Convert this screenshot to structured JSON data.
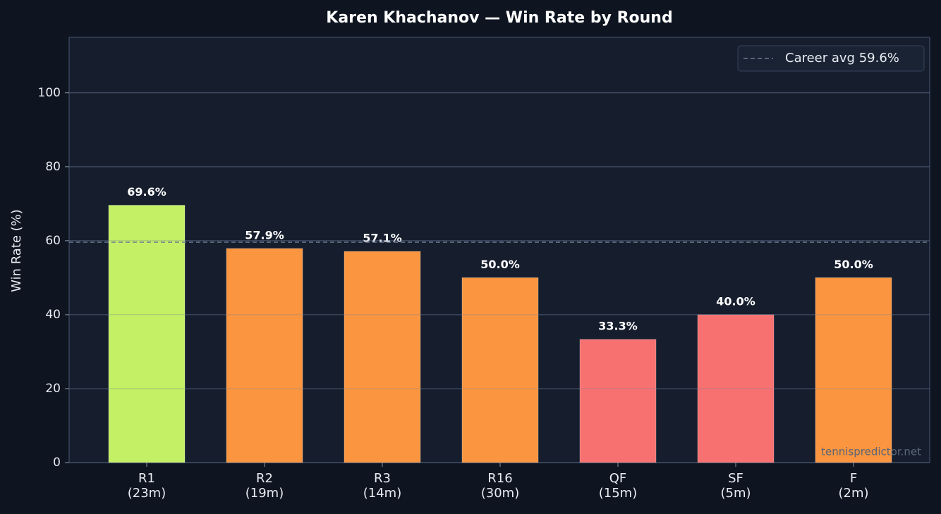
{
  "chart_data": {
    "type": "bar",
    "title": "Karen Khachanov — Win Rate by Round",
    "y_label": "Win Rate (%)",
    "categories": [
      "R1\n(23m)",
      "R2\n(19m)",
      "R3\n(14m)",
      "R16\n(30m)",
      "QF\n(15m)",
      "SF\n(5m)",
      "F\n(2m)"
    ],
    "values": [
      69.6,
      57.9,
      57.1,
      50.0,
      33.3,
      40.0,
      50.0
    ],
    "value_labels": [
      "69.6%",
      "57.9%",
      "57.1%",
      "50.0%",
      "33.3%",
      "40.0%",
      "50.0%"
    ],
    "colors": [
      "#c3f064",
      "#fb953f",
      "#fb953f",
      "#fb953f",
      "#f87171",
      "#f87171",
      "#fb953f"
    ],
    "ylim": [
      0,
      115
    ],
    "yticks": [
      0,
      20,
      40,
      60,
      80,
      100
    ],
    "grid": true,
    "reference_line": {
      "value": 59.6,
      "label": "Career avg 59.6%"
    },
    "legend_position": "upper-right",
    "watermark": "tennispredictor.net"
  }
}
